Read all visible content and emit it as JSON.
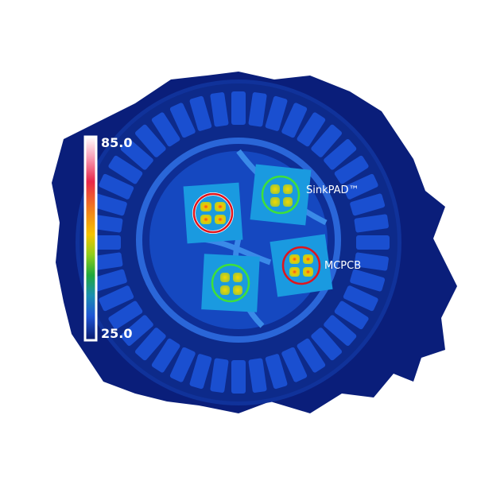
{
  "colorbar": {
    "max_label": "85.0",
    "min_label": "25.0",
    "stops": [
      "#ffffff",
      "#f9a0b8",
      "#e8274a",
      "#f07a1f",
      "#f5c400",
      "#8fce1b",
      "#1fa83c",
      "#1a8fb0",
      "#1f55d6",
      "#0a1a6e"
    ]
  },
  "annotations": [
    {
      "label": "SinkPAD™",
      "ring_color": "#3ee03a"
    },
    {
      "label": "MCPCB",
      "ring_color": "#e0141c"
    }
  ],
  "colors": {
    "background": "#0a1e7a",
    "fixture": "#1a4fd0",
    "board": "#1e8fe0"
  }
}
